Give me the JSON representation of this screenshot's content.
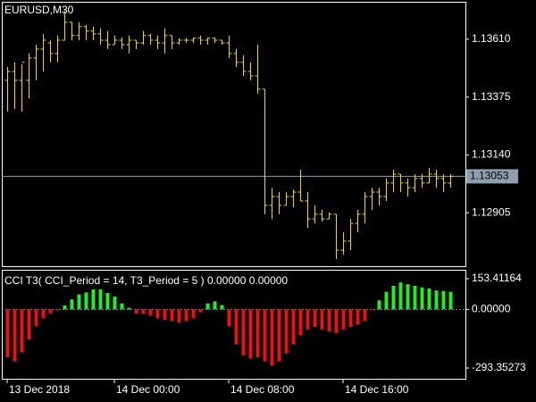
{
  "chart_data": [
    {
      "type": "ohlc",
      "title": "EURUSD,M30",
      "color": "#e2d24e",
      "open": [
        1.13443,
        1.13479,
        1.13443,
        1.13443,
        1.13534,
        1.1357,
        1.13595,
        1.13552,
        1.13606,
        1.13679,
        1.13625,
        1.13661,
        1.13643,
        1.13632,
        1.13606,
        1.13588,
        1.13606,
        1.13588,
        1.13606,
        1.13595,
        1.13625,
        1.13606,
        1.13595,
        1.13625,
        1.13595,
        1.13606,
        1.13606,
        1.13614,
        1.13606,
        1.13614,
        1.13606,
        1.13595,
        1.13552,
        1.13516,
        1.13479,
        1.13461,
        1.13407,
        1.12935,
        1.12971,
        1.12935,
        1.12971,
        1.12989,
        1.12953,
        1.1288,
        1.12899,
        1.1288,
        1.12899,
        1.12753,
        1.1279,
        1.12862,
        1.12899,
        1.12971,
        1.12989,
        1.12971,
        1.13026,
        1.13062,
        1.13026,
        1.13007,
        1.13044,
        1.13026,
        1.13062,
        1.13044,
        1.13026
      ],
      "high": [
        1.13497,
        1.13516,
        1.13508,
        1.13552,
        1.13588,
        1.13632,
        1.13606,
        1.13625,
        1.13726,
        1.13679,
        1.13679,
        1.13668,
        1.13661,
        1.13654,
        1.13643,
        1.13625,
        1.13617,
        1.13625,
        1.13606,
        1.13643,
        1.13632,
        1.13625,
        1.13654,
        1.13625,
        1.13614,
        1.13614,
        1.13617,
        1.13625,
        1.13617,
        1.13617,
        1.13606,
        1.13625,
        1.1357,
        1.13545,
        1.13516,
        1.13588,
        1.13407,
        1.13007,
        1.12989,
        1.12989,
        1.13,
        1.1308,
        1.12989,
        1.12935,
        1.12917,
        1.12906,
        1.12899,
        1.12826,
        1.1288,
        1.12917,
        1.12989,
        1.13007,
        1.13007,
        1.13044,
        1.1308,
        1.13062,
        1.13044,
        1.13062,
        1.13062,
        1.13087,
        1.1308,
        1.13062,
        1.13062
      ],
      "low": [
        1.13316,
        1.13327,
        1.13316,
        1.1337,
        1.13443,
        1.13479,
        1.13516,
        1.13516,
        1.13606,
        1.13606,
        1.13606,
        1.13606,
        1.13606,
        1.13588,
        1.1357,
        1.13588,
        1.1357,
        1.13552,
        1.1357,
        1.13588,
        1.13588,
        1.1357,
        1.13552,
        1.1357,
        1.13588,
        1.13595,
        1.13595,
        1.13588,
        1.13588,
        1.13595,
        1.13588,
        1.13534,
        1.13497,
        1.13461,
        1.13443,
        1.13389,
        1.12899,
        1.1288,
        1.12899,
        1.12935,
        1.12928,
        1.12953,
        1.12844,
        1.12862,
        1.12869,
        1.1288,
        1.12717,
        1.12735,
        1.12753,
        1.12826,
        1.12862,
        1.12917,
        1.12935,
        1.12953,
        1.12989,
        1.12989,
        1.12971,
        1.12989,
        1.13007,
        1.13026,
        1.13007,
        1.12989,
        1.13007
      ],
      "close": [
        1.13479,
        1.13443,
        1.13516,
        1.13534,
        1.1357,
        1.13606,
        1.13552,
        1.13606,
        1.13679,
        1.13625,
        1.13661,
        1.13643,
        1.13632,
        1.13606,
        1.13588,
        1.13606,
        1.13588,
        1.13606,
        1.13595,
        1.13625,
        1.13606,
        1.13595,
        1.13625,
        1.13595,
        1.13606,
        1.13606,
        1.13614,
        1.13606,
        1.13614,
        1.13606,
        1.13595,
        1.13552,
        1.13516,
        1.13479,
        1.13461,
        1.13407,
        1.12935,
        1.12971,
        1.12935,
        1.12971,
        1.12989,
        1.12953,
        1.1288,
        1.12899,
        1.1288,
        1.12899,
        1.12753,
        1.1279,
        1.12862,
        1.12899,
        1.12971,
        1.12989,
        1.12971,
        1.13026,
        1.13062,
        1.13026,
        1.13007,
        1.13044,
        1.13026,
        1.13062,
        1.13044,
        1.13026,
        1.13053
      ],
      "ylim": [
        1.12688,
        1.13762
      ],
      "yticks": [
        {
          "value": 1.1361,
          "label": "1.13610"
        },
        1.13375,
        {
          "value": 1.1314,
          "label": "1.13140"
        },
        1.12905
      ],
      "current_price": 1.13053,
      "current_price_color": "#8e9eac"
    },
    {
      "type": "bar",
      "title": "CCI T3( CCI_Period = 14, T3_Period = 5 ) 0.00000 0.00000",
      "up_color": "#22ee22",
      "down_color": "#ee1111",
      "categories": [
        "13 Dec 2018",
        null,
        null,
        null,
        null,
        null,
        null,
        null,
        null,
        null,
        null,
        null,
        null,
        null,
        null,
        "14 Dec 00:00",
        null,
        null,
        null,
        null,
        null,
        null,
        null,
        null,
        null,
        null,
        null,
        null,
        null,
        null,
        null,
        "14 Dec 08:00",
        null,
        null,
        null,
        null,
        null,
        null,
        null,
        null,
        null,
        null,
        null,
        null,
        null,
        null,
        null,
        "14 Dec 16:00",
        null,
        null,
        null,
        null,
        null,
        null,
        null,
        null,
        null,
        null,
        null,
        null,
        null,
        null,
        null
      ],
      "values": [
        -240,
        -260,
        -215,
        -150,
        -85,
        -45,
        -20,
        -5,
        20,
        50,
        75,
        85,
        100,
        100,
        82,
        65,
        30,
        8,
        -20,
        -22,
        -30,
        -45,
        -52,
        -58,
        -65,
        -58,
        -45,
        -15,
        30,
        40,
        22,
        -85,
        -175,
        -230,
        -245,
        -240,
        -260,
        -280,
        -260,
        -220,
        -175,
        -130,
        -100,
        -88,
        -100,
        -110,
        -118,
        -100,
        -88,
        -75,
        -58,
        -2,
        45,
        88,
        118,
        135,
        126,
        118,
        110,
        105,
        95,
        92,
        88
      ],
      "ylim": [
        -293.35273,
        153.41164
      ],
      "yticks": [
        153.41164,
        {
          "value": 0,
          "label": "0.00000"
        },
        -293.35273
      ]
    }
  ]
}
